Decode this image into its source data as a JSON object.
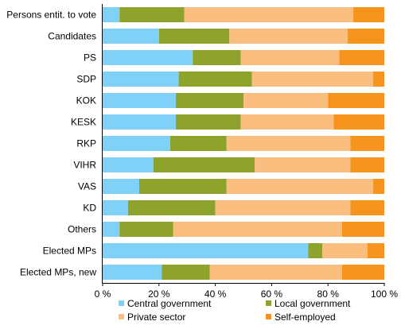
{
  "chart_data": {
    "type": "bar",
    "orientation": "horizontal",
    "stacked": "percent",
    "categories": [
      "Persons entit. to vote",
      "Candidates",
      "PS",
      "SDP",
      "KOK",
      "KESK",
      "RKP",
      "VIHR",
      "VAS",
      "KD",
      "Others",
      "Elected MPs",
      "Elected MPs, new"
    ],
    "series": [
      {
        "name": "Central government",
        "color": "#7FD1F8",
        "values": [
          6,
          20,
          32,
          27,
          26,
          26,
          24,
          18,
          13,
          9,
          6,
          73,
          21
        ]
      },
      {
        "name": "Local government",
        "color": "#8DA32B",
        "values": [
          23,
          25,
          17,
          26,
          24,
          23,
          20,
          36,
          31,
          31,
          19,
          5,
          17
        ]
      },
      {
        "name": "Private sector",
        "color": "#FABF7F",
        "values": [
          60,
          42,
          35,
          43,
          30,
          33,
          44,
          34,
          52,
          48,
          60,
          16,
          47
        ]
      },
      {
        "name": "Self-employed",
        "color": "#F7941D",
        "values": [
          11,
          13,
          16,
          4,
          20,
          18,
          12,
          12,
          4,
          12,
          15,
          6,
          15
        ]
      }
    ],
    "xlim": [
      0,
      100
    ],
    "xticks": [
      "0 %",
      "20 %",
      "40 %",
      "60 %",
      "80 %",
      "100 %"
    ],
    "legend_position": "bottom",
    "grid": false
  }
}
